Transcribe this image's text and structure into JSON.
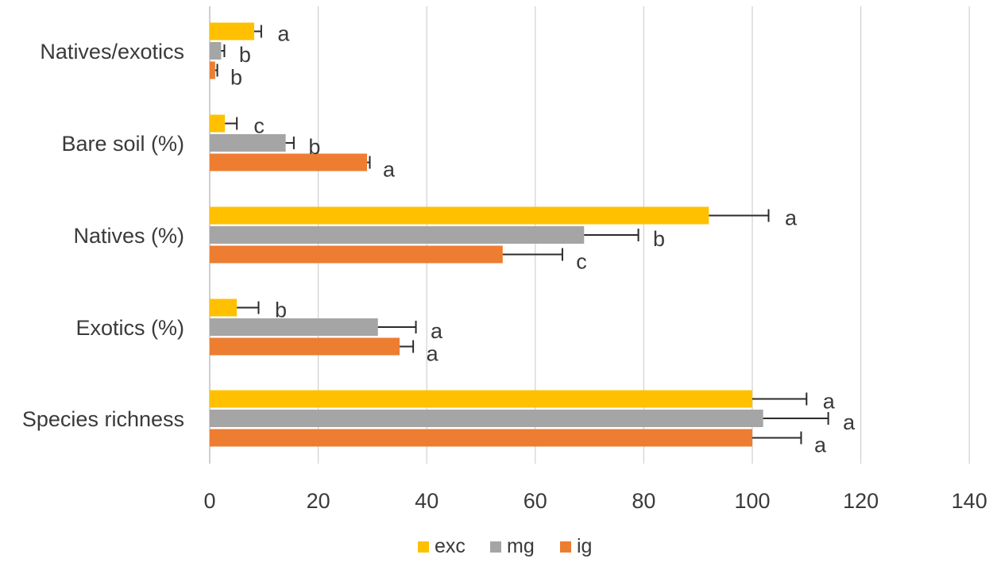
{
  "chart_data": {
    "type": "bar",
    "orientation": "horizontal",
    "title": "",
    "xlabel": "",
    "ylabel": "",
    "xlim": [
      0,
      140
    ],
    "x_ticks": [
      0,
      20,
      40,
      60,
      80,
      100,
      120,
      140
    ],
    "grid": true,
    "legend_position": "bottom",
    "categories": [
      "Natives/exotics",
      "Bare soil (%)",
      "Natives (%)",
      "Exotics (%)",
      "Species richness"
    ],
    "series": [
      {
        "name": "exc",
        "color": "#FFC000",
        "values": [
          8.2,
          2.8,
          92,
          5,
          100
        ],
        "errors": [
          1.3,
          2.2,
          11,
          4,
          10
        ],
        "letters": [
          "a",
          "c",
          "a",
          "b",
          "a"
        ]
      },
      {
        "name": "mg",
        "color": "#A5A5A5",
        "values": [
          2.1,
          14,
          69,
          31,
          102
        ],
        "errors": [
          0.6,
          1.5,
          10,
          7,
          12
        ],
        "letters": [
          "b",
          "b",
          "b",
          "a",
          "a"
        ]
      },
      {
        "name": "ig",
        "color": "#ED7D31",
        "values": [
          1,
          29,
          54,
          35,
          100
        ],
        "errors": [
          0.4,
          0.5,
          11,
          2.5,
          9
        ],
        "letters": [
          "b",
          "a",
          "c",
          "a",
          "a"
        ]
      }
    ]
  }
}
